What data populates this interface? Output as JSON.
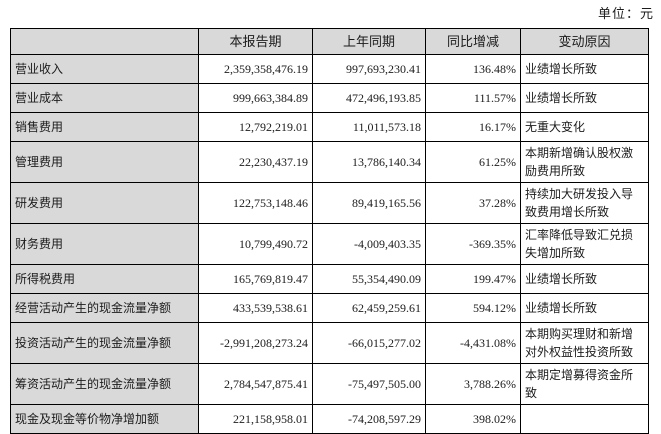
{
  "unit_label": "单位：元",
  "colors": {
    "header_bg": "#d9d9d9",
    "row_label_bg": "#d9d9d9",
    "border": "#000000",
    "text": "#1c1c1c"
  },
  "table": {
    "columns": [
      "",
      "本报告期",
      "上年同期",
      "同比增减",
      "变动原因"
    ],
    "rows": [
      {
        "item": "营业收入",
        "current": "2,359,358,476.19",
        "prior": "997,693,230.41",
        "change": "136.48%",
        "reason": "业绩增长所致"
      },
      {
        "item": "营业成本",
        "current": "999,663,384.89",
        "prior": "472,496,193.85",
        "change": "111.57%",
        "reason": "业绩增长所致"
      },
      {
        "item": "销售费用",
        "current": "12,792,219.01",
        "prior": "11,011,573.18",
        "change": "16.17%",
        "reason": "无重大变化"
      },
      {
        "item": "管理费用",
        "current": "22,230,437.19",
        "prior": "13,786,140.34",
        "change": "61.25%",
        "reason": "本期新增确认股权激励费用所致"
      },
      {
        "item": "研发费用",
        "current": "122,753,148.46",
        "prior": "89,419,165.56",
        "change": "37.28%",
        "reason": "持续加大研发投入导致费用增长所致"
      },
      {
        "item": "财务费用",
        "current": "10,799,490.72",
        "prior": "-4,009,403.35",
        "change": "-369.35%",
        "reason": "汇率降低导致汇兑损失增加所致"
      },
      {
        "item": "所得税费用",
        "current": "165,769,819.47",
        "prior": "55,354,490.09",
        "change": "199.47%",
        "reason": "业绩增长所致"
      },
      {
        "item": "经营活动产生的现金流量净额",
        "current": "433,539,538.61",
        "prior": "62,459,259.61",
        "change": "594.12%",
        "reason": "业绩增长所致"
      },
      {
        "item": "投资活动产生的现金流量净额",
        "current": "-2,991,208,273.24",
        "prior": "-66,015,277.02",
        "change": "-4,431.08%",
        "reason": "本期购买理财和新增对外权益性投资所致"
      },
      {
        "item": "筹资活动产生的现金流量净额",
        "current": "2,784,547,875.41",
        "prior": "-75,497,505.00",
        "change": "3,788.26%",
        "reason": "本期定增募得资金所致"
      },
      {
        "item": "现金及现金等价物净增加额",
        "current": "221,158,958.01",
        "prior": "-74,208,597.29",
        "change": "398.02%",
        "reason": ""
      }
    ]
  }
}
